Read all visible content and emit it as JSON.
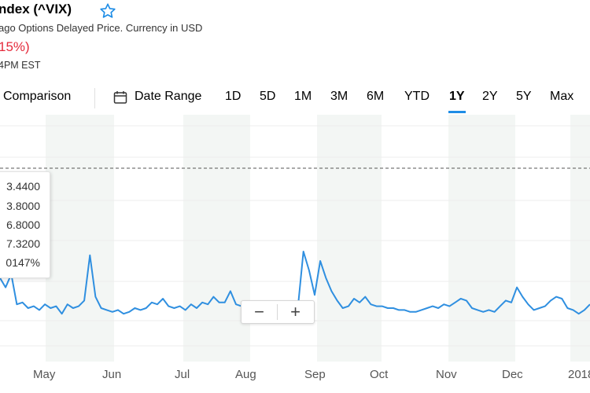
{
  "header": {
    "title": "ndex (^VIX)",
    "subtitle": "ago Options Delayed Price. Currency in USD",
    "change": "15%)",
    "time": "4PM EST"
  },
  "toolbar": {
    "comparison": "Comparison",
    "date_range": "Date Range",
    "ranges": [
      "1D",
      "5D",
      "1M",
      "3M",
      "6M",
      "YTD",
      "1Y",
      "2Y",
      "5Y",
      "Max"
    ],
    "active_range": "1Y"
  },
  "tooltip": {
    "rows": [
      "3.4400",
      "3.8000",
      "6.8000",
      "7.3200",
      "0147%"
    ]
  },
  "zoom": {
    "minus": "−",
    "plus": "+"
  },
  "colors": {
    "line": "#2f8fe0",
    "accent": "#1f8de6",
    "change": "#e52b3c",
    "band": "#f3f6f4"
  },
  "chart_data": {
    "type": "line",
    "x_labels": [
      "May",
      "Jun",
      "Jul",
      "Aug",
      "Sep",
      "Oct",
      "Nov",
      "Dec",
      "2018"
    ],
    "series": [
      {
        "values": [
          12.6,
          12.1,
          12.8,
          11.2,
          11.3,
          11.0,
          11.1,
          10.9,
          11.2,
          11.0,
          11.1,
          10.7,
          11.2,
          11.0,
          11.1,
          11.4,
          13.8,
          11.6,
          11.0,
          10.9,
          10.8,
          10.9,
          10.7,
          10.8,
          11.0,
          10.9,
          11.0,
          11.3,
          11.2,
          11.5,
          11.1,
          11.0,
          11.1,
          10.9,
          11.2,
          11.0,
          11.3,
          11.2,
          11.6,
          11.3,
          11.3,
          11.9,
          11.2,
          11.1,
          11.0,
          10.9,
          10.8,
          10.8,
          10.9,
          11.0,
          11.1,
          11.0,
          11.2,
          11.0,
          14.0,
          13.0,
          11.7,
          13.5,
          12.6,
          11.9,
          11.4,
          11.0,
          11.1,
          11.5,
          11.3,
          11.6,
          11.2,
          11.1,
          11.1,
          11.0,
          11.0,
          10.9,
          10.9,
          10.8,
          10.8,
          10.9,
          11.0,
          11.1,
          11.0,
          11.2,
          11.1,
          11.3,
          11.5,
          11.4,
          11.0,
          10.9,
          10.8,
          10.9,
          10.8,
          11.1,
          11.4,
          11.3,
          12.1,
          11.6,
          11.2,
          10.9,
          11.0,
          11.1,
          11.4,
          11.6,
          11.5,
          11.0,
          10.9,
          10.7,
          10.9,
          11.2
        ]
      }
    ],
    "dashed_reference_value": 18.0,
    "ylim": [
      9,
      19
    ],
    "grid": true
  }
}
